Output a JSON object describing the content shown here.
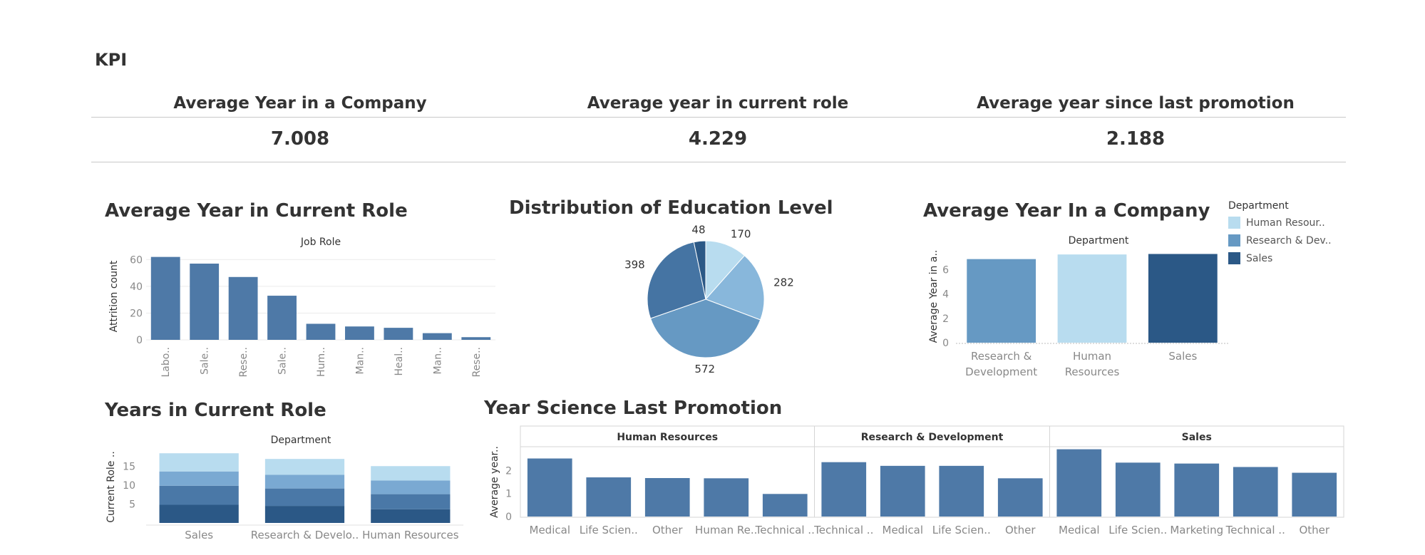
{
  "kpi": {
    "title": "KPI",
    "items": [
      {
        "label": "Average Year in a Company",
        "value": "7.008"
      },
      {
        "label": "Average year in current role",
        "value": "4.229"
      },
      {
        "label": "Average year since last promotion",
        "value": "2.188"
      }
    ]
  },
  "colors": {
    "bar": "#4e79a7",
    "human_resources": "#b8dcef",
    "research_dev": "#6699c3",
    "sales": "#2b5886",
    "stack": [
      "#2b5886",
      "#4a78a7",
      "#7aa9d2",
      "#b8dcef"
    ],
    "pie": [
      "#b8dcef",
      "#88b7db",
      "#6699c3",
      "#4574a3",
      "#2b5886"
    ]
  },
  "sections": {
    "current_role": "Average Year in Current Role",
    "education": "Distribution of Education Level",
    "company": "Average Year In a Company",
    "years_role": "Years in Current Role",
    "promotion": "Year Science Last Promotion"
  },
  "legend": {
    "title": "Department",
    "items": [
      {
        "label": "Human Resour..",
        "color": "#b8dcef"
      },
      {
        "label": "Research & Dev..",
        "color": "#6699c3"
      },
      {
        "label": "Sales",
        "color": "#2b5886"
      }
    ]
  },
  "chart_data": [
    {
      "id": "current_role",
      "type": "bar",
      "title": "Job Role",
      "ylabel": "Attrition count",
      "ylim": [
        0,
        65
      ],
      "yticks": [
        0,
        20,
        40,
        60
      ],
      "categories": [
        "Labo..",
        "Sale..",
        "Rese..",
        "Sale..",
        "Hum..",
        "Man..",
        "Heal..",
        "Man..",
        "Rese.."
      ],
      "values": [
        62,
        57,
        47,
        33,
        12,
        10,
        9,
        5,
        2
      ]
    },
    {
      "id": "education",
      "type": "pie",
      "values": [
        170,
        282,
        572,
        398,
        48
      ]
    },
    {
      "id": "company",
      "type": "bar",
      "title": "Department",
      "ylabel": "Average Year in a..",
      "ylim": [
        0,
        7.6
      ],
      "yticks": [
        0,
        2,
        4,
        6
      ],
      "categories": [
        "Research & Development",
        "Human Resources",
        "Sales"
      ],
      "category_lines": [
        [
          "Research &",
          "Development"
        ],
        [
          "Human",
          "Resources"
        ],
        [
          "Sales"
        ]
      ],
      "values": [
        6.86,
        7.24,
        7.28
      ]
    },
    {
      "id": "years_role",
      "type": "bar",
      "stacked": true,
      "title": "Department",
      "ylabel": "Current Role ..",
      "ylim": [
        0,
        19
      ],
      "yticks": [
        5,
        10,
        15
      ],
      "categories": [
        "Sales",
        "Research & Develo..",
        "Human Resources"
      ],
      "series": [
        {
          "values": [
            4.8,
            4.5,
            3.6
          ]
        },
        {
          "values": [
            5.0,
            4.6,
            4.0
          ]
        },
        {
          "values": [
            3.8,
            3.6,
            3.6
          ]
        },
        {
          "values": [
            4.8,
            4.2,
            3.8
          ]
        }
      ]
    },
    {
      "id": "promotion",
      "type": "bar",
      "ylabel": "Average year..",
      "ylim": [
        0,
        3.0
      ],
      "yticks": [
        0,
        1,
        2
      ],
      "panels": [
        {
          "name": "Human Resources",
          "categories": [
            "Medical",
            "Life Scien..",
            "Other",
            "Human Re..",
            "Technical .."
          ],
          "values": [
            2.52,
            1.7,
            1.67,
            1.66,
            0.98
          ]
        },
        {
          "name": "Research & Development",
          "categories": [
            "Technical ..",
            "Medical",
            "Life Scien..",
            "Other"
          ],
          "values": [
            2.36,
            2.2,
            2.2,
            1.66
          ]
        },
        {
          "name": "Sales",
          "categories": [
            "Medical",
            "Life Scien..",
            "Marketing",
            "Technical ..",
            "Other"
          ],
          "values": [
            2.92,
            2.34,
            2.3,
            2.15,
            1.9
          ]
        }
      ]
    }
  ]
}
